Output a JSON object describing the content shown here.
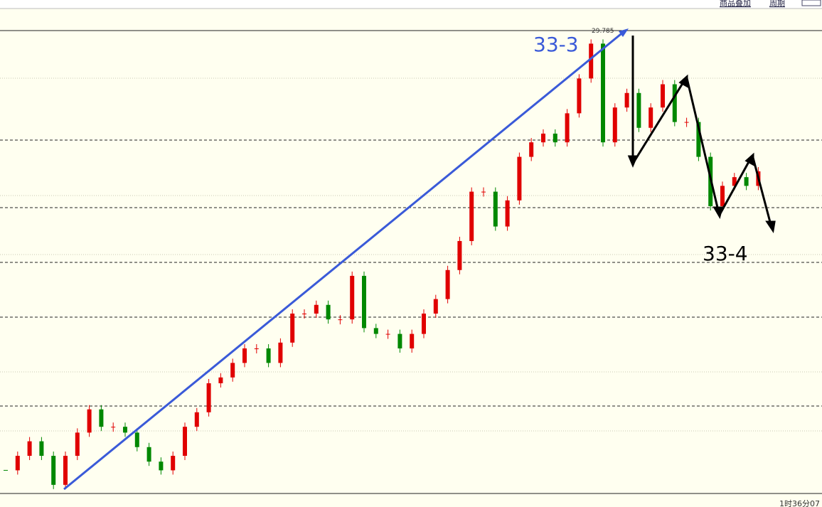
{
  "chart_data": {
    "type": "candlestick",
    "peak_label": "29.785",
    "annotations": [
      "33-3",
      "33-4"
    ],
    "toolbar": [
      "商品叠加",
      "周期"
    ],
    "time_label": "1时36分07",
    "close": [
      28.27,
      28.32,
      28.37,
      28.32,
      28.22,
      28.32,
      28.4,
      28.48,
      28.42,
      28.42,
      28.4,
      28.35,
      28.3,
      28.27,
      28.32,
      28.42,
      28.47,
      28.57,
      28.59,
      28.64,
      28.69,
      28.69,
      28.64,
      28.71,
      28.81,
      28.81,
      28.84,
      28.79,
      28.79,
      28.94,
      28.76,
      28.74,
      28.74,
      28.69,
      28.74,
      28.81,
      28.86,
      28.96,
      29.06,
      29.23,
      29.23,
      29.11,
      29.2,
      29.35,
      29.4,
      29.43,
      29.4,
      29.5,
      29.62,
      29.74,
      29.4,
      29.52,
      29.57,
      29.45,
      29.52,
      29.6,
      29.47,
      29.47,
      29.35,
      29.18,
      29.25,
      29.28,
      29.25,
      29.3
    ],
    "up_color": "#e00000",
    "down_color": "#008800",
    "ylim": [
      28.2,
      29.785
    ]
  }
}
